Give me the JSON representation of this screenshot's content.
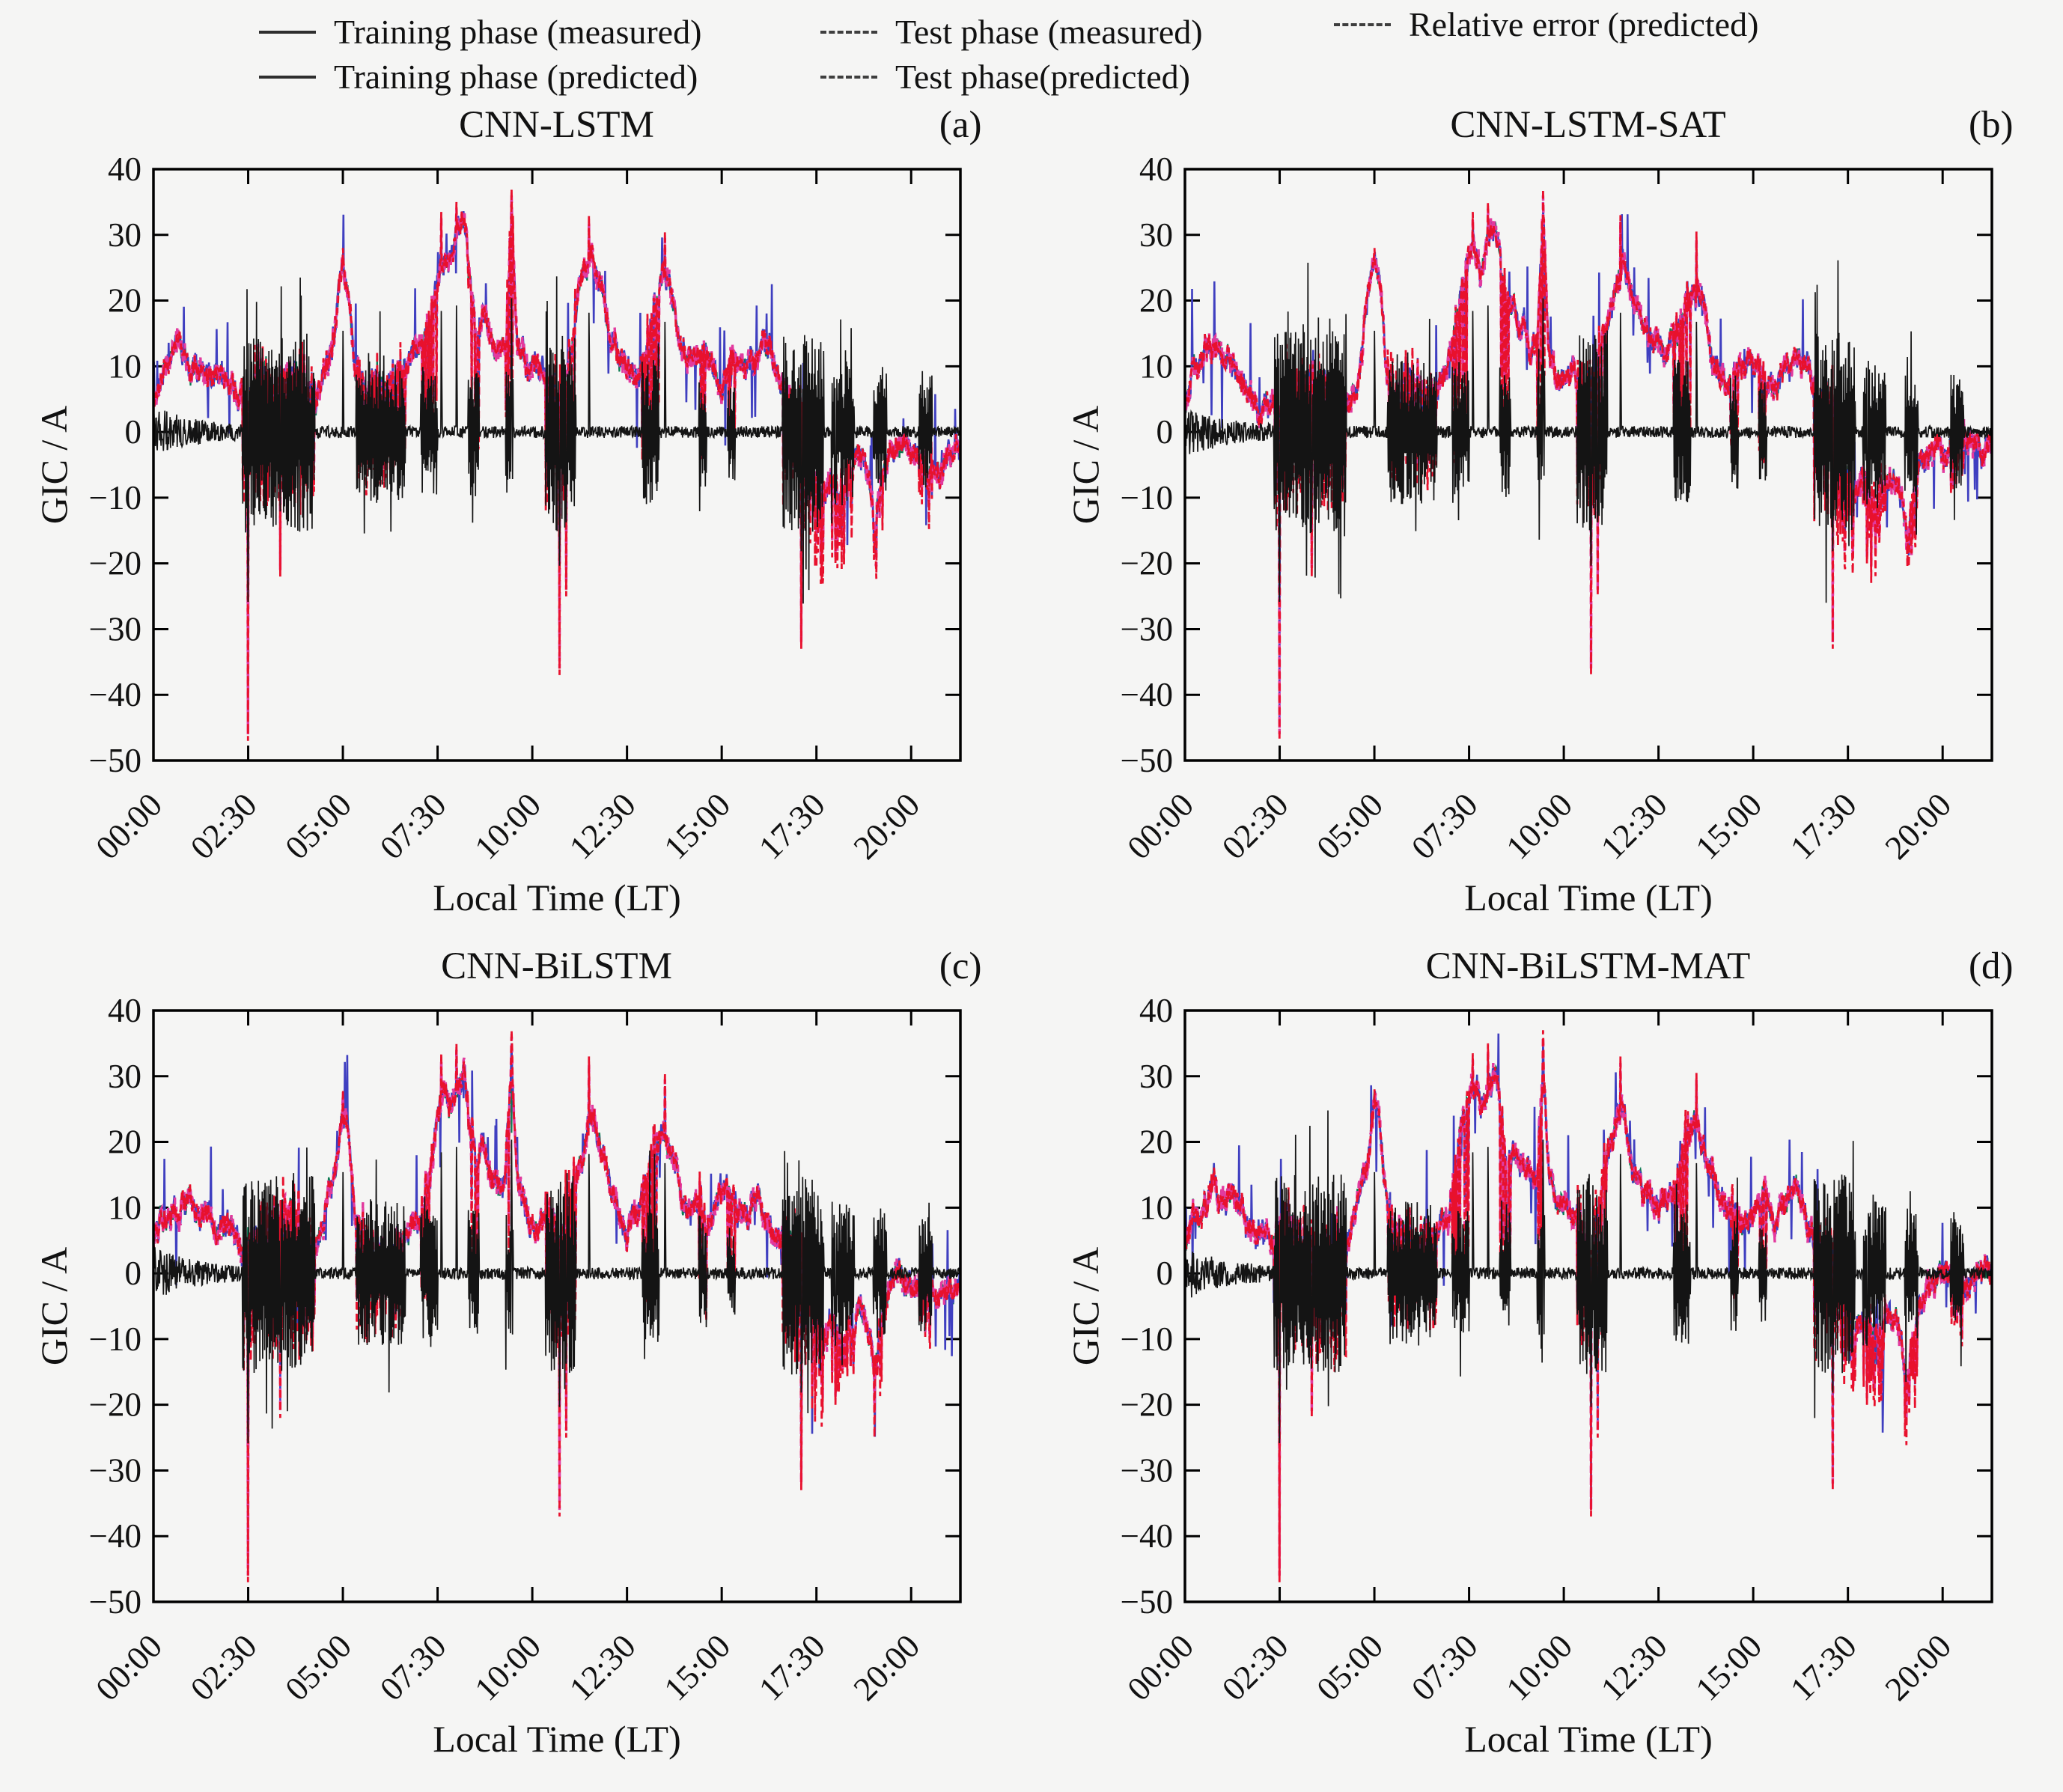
{
  "figure": {
    "background": "#f5f5f4",
    "frame_color": "#000000",
    "text_color": "#111111"
  },
  "legend": {
    "items": [
      {
        "label": "Training phase (measured)",
        "line": "solid"
      },
      {
        "label": "Training phase (predicted)",
        "line": "solid"
      },
      {
        "label": "Test phase (measured)",
        "line": "dashed"
      },
      {
        "label": "Test phase(predicted)",
        "line": "dashed"
      },
      {
        "label": "Relative error (predicted)",
        "line": "dashed"
      }
    ]
  },
  "chart_data": {
    "type": "line",
    "panels": [
      {
        "title": "CNN-LSTM",
        "letter": "(a)",
        "seed": 11
      },
      {
        "title": "CNN-LSTM-SAT",
        "letter": "(b)",
        "seed": 23
      },
      {
        "title": "CNN-BiLSTM",
        "letter": "(c)",
        "seed": 37
      },
      {
        "title": "CNN-BiLSTM-MAT",
        "letter": "(d)",
        "seed": 51
      }
    ],
    "xlabel": "Local Time (LT)",
    "ylabel": "GIC / A",
    "ylim": [
      -50,
      40
    ],
    "yticks": [
      40,
      30,
      20,
      10,
      0,
      -10,
      -20,
      -30,
      -40,
      -50
    ],
    "ytick_labels": [
      "40",
      "30",
      "20",
      "10",
      "0",
      "−10",
      "−20",
      "−30",
      "−40",
      "−50"
    ],
    "xtick_hours": [
      0,
      2.5,
      5,
      7.5,
      10,
      12.5,
      15,
      17.5,
      20
    ],
    "xtick_labels": [
      "00:00",
      "02:30",
      "05:00",
      "07:30",
      "10:00",
      "12:30",
      "15:00",
      "17:30",
      "20:00"
    ],
    "xlim_hours": [
      0,
      21.3
    ],
    "grid": false,
    "legend_position": "top",
    "series": [
      {
        "name": "Training phase (measured)",
        "color": "#3f3fc0",
        "style": "solid"
      },
      {
        "name": "Training phase (predicted)",
        "color": "#0d7a52",
        "style": "solid"
      },
      {
        "name": "Test phase (measured)",
        "color": "#e8112d",
        "style": "dashed"
      },
      {
        "name": "Test phase(predicted)",
        "color": "#e23a9e",
        "style": "dashed"
      },
      {
        "name": "Relative error (predicted)",
        "color": "#141414",
        "style": "dashed"
      }
    ],
    "gic_keypoints_hours": [
      0,
      0.2,
      0.5,
      0.8,
      1.1,
      1.5,
      1.8,
      2.1,
      2.3,
      2.45,
      2.55,
      2.7,
      3.0,
      3.3,
      3.6,
      3.9,
      4.2,
      4.5,
      4.8,
      5.0,
      5.15,
      5.3,
      5.6,
      5.9,
      6.2,
      6.5,
      6.8,
      7.0,
      7.2,
      7.4,
      7.6,
      7.8,
      8.0,
      8.2,
      8.35,
      8.5,
      8.7,
      8.9,
      9.1,
      9.3,
      9.45,
      9.6,
      9.8,
      10.0,
      10.2,
      10.5,
      10.72,
      11.0,
      11.2,
      11.4,
      11.55,
      11.7,
      11.9,
      12.1,
      12.3,
      12.5,
      12.7,
      13.0,
      13.2,
      13.5,
      13.7,
      13.9,
      14.1,
      14.3,
      14.6,
      14.9,
      15.2,
      15.5,
      15.8,
      16.1,
      16.4,
      16.7,
      17.0,
      17.2,
      17.45,
      17.7,
      17.9,
      18.1,
      18.35,
      18.6,
      18.75,
      18.9,
      19.05,
      19.2,
      19.35,
      19.5,
      19.8,
      20.1,
      20.4,
      20.7,
      21.0,
      21.3
    ],
    "gic_keypoints_values": [
      4,
      9,
      11,
      12,
      10,
      8,
      6,
      4,
      3,
      2,
      3,
      6,
      7,
      6,
      7,
      6,
      5,
      8,
      18,
      26,
      22,
      10,
      6,
      7,
      6,
      7,
      8,
      10,
      16,
      22,
      27,
      24,
      28,
      30,
      22,
      16,
      18,
      14,
      12,
      13,
      32,
      14,
      10,
      9,
      10,
      8,
      6,
      12,
      18,
      24,
      27,
      22,
      18,
      14,
      11,
      9,
      10,
      13,
      18,
      23,
      20,
      14,
      11,
      10,
      9,
      10,
      11,
      9,
      10,
      11,
      8,
      6,
      4,
      2,
      -6,
      -9,
      -7,
      -10,
      -8,
      -5,
      -6,
      -10,
      -16,
      -10,
      -5,
      -3,
      -2,
      -3,
      -2,
      -3,
      -2,
      -2
    ],
    "noise_burst_windows": [
      [
        2.35,
        4.25,
        1.4
      ],
      [
        5.35,
        6.65,
        1.0
      ],
      [
        7.05,
        7.5,
        0.9
      ],
      [
        8.3,
        8.6,
        0.9
      ],
      [
        9.3,
        9.5,
        0.9
      ],
      [
        10.35,
        11.15,
        1.4
      ],
      [
        12.9,
        13.35,
        1.0
      ],
      [
        14.4,
        14.6,
        0.8
      ],
      [
        15.15,
        15.35,
        0.7
      ],
      [
        16.6,
        17.7,
        1.4
      ],
      [
        17.9,
        18.5,
        1.0
      ],
      [
        19.0,
        19.35,
        0.9
      ],
      [
        20.2,
        20.55,
        0.8
      ]
    ],
    "negative_spikes": [
      [
        2.5,
        -47
      ],
      [
        3.35,
        -22
      ],
      [
        10.72,
        -37
      ],
      [
        10.9,
        -25
      ],
      [
        17.1,
        -33
      ],
      [
        18.0,
        -20
      ]
    ],
    "positive_spikes": [
      [
        5.0,
        28
      ],
      [
        7.6,
        33.5
      ],
      [
        8.0,
        35
      ],
      [
        9.45,
        37
      ],
      [
        11.5,
        33
      ],
      [
        13.5,
        30.5
      ]
    ]
  }
}
